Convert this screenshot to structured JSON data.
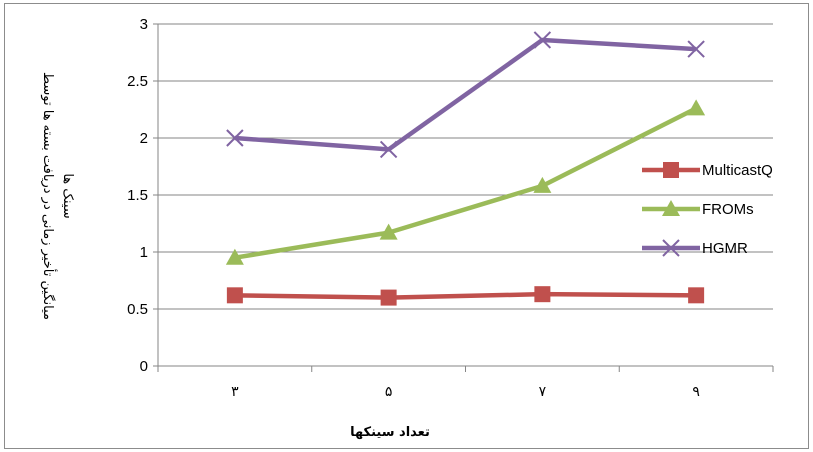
{
  "chart_data": {
    "type": "line",
    "categories": [
      "۳",
      "۵",
      "۷",
      "۹"
    ],
    "xlabel": "تعداد سینکها",
    "ylabel_lines": [
      "میانگین تأخیر زمانی در دریافت بسته ها توسط",
      "سینک ها"
    ],
    "ylim": [
      0,
      3
    ],
    "yticks": [
      "0",
      "0.5",
      "1",
      "1.5",
      "2",
      "2.5",
      "3"
    ],
    "ytick_values": [
      0,
      0.5,
      1,
      1.5,
      2,
      2.5,
      3
    ],
    "grid": true,
    "legend_position": "right",
    "series": [
      {
        "name": "MulticastQ",
        "values": [
          0.62,
          0.6,
          0.63,
          0.62
        ],
        "color": "#c0504d",
        "marker": "square"
      },
      {
        "name": "FROMs",
        "values": [
          0.95,
          1.17,
          1.58,
          2.26
        ],
        "color": "#9bbb59",
        "marker": "triangle"
      },
      {
        "name": "HGMR",
        "values": [
          2.0,
          1.9,
          2.86,
          2.78
        ],
        "color": "#8064a2",
        "marker": "x"
      }
    ]
  }
}
